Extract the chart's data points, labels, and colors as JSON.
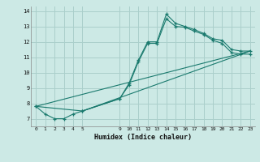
{
  "xlabel": "Humidex (Indice chaleur)",
  "background_color": "#cce9e5",
  "grid_color": "#aacfcb",
  "line_color": "#1a7a6e",
  "xlim": [
    -0.5,
    23.5
  ],
  "ylim": [
    6.5,
    14.3
  ],
  "xticks": [
    0,
    1,
    2,
    3,
    4,
    5,
    9,
    10,
    11,
    12,
    13,
    14,
    15,
    16,
    17,
    18,
    19,
    20,
    21,
    22,
    23
  ],
  "yticks": [
    7,
    8,
    9,
    10,
    11,
    12,
    13,
    14
  ],
  "series1_x": [
    0,
    1,
    2,
    3,
    4,
    5,
    9,
    10,
    11,
    12,
    13,
    14,
    15,
    16,
    17,
    18,
    19,
    20,
    21,
    22,
    23
  ],
  "series1_y": [
    7.8,
    7.3,
    7.0,
    7.0,
    7.3,
    7.5,
    8.3,
    9.3,
    10.8,
    12.0,
    12.0,
    13.8,
    13.2,
    13.0,
    12.8,
    12.55,
    12.2,
    12.1,
    11.5,
    11.4,
    11.4
  ],
  "series2_x": [
    0,
    5,
    9,
    10,
    11,
    12,
    13,
    14,
    15,
    16,
    17,
    18,
    19,
    20,
    21,
    22,
    23
  ],
  "series2_y": [
    7.8,
    7.5,
    8.3,
    9.2,
    10.7,
    11.9,
    11.9,
    13.5,
    13.0,
    12.95,
    12.7,
    12.48,
    12.1,
    11.9,
    11.3,
    11.2,
    11.2
  ],
  "series3_x": [
    0,
    23
  ],
  "series3_y": [
    7.8,
    11.4
  ],
  "series4_x": [
    5,
    23
  ],
  "series4_y": [
    7.5,
    11.4
  ]
}
